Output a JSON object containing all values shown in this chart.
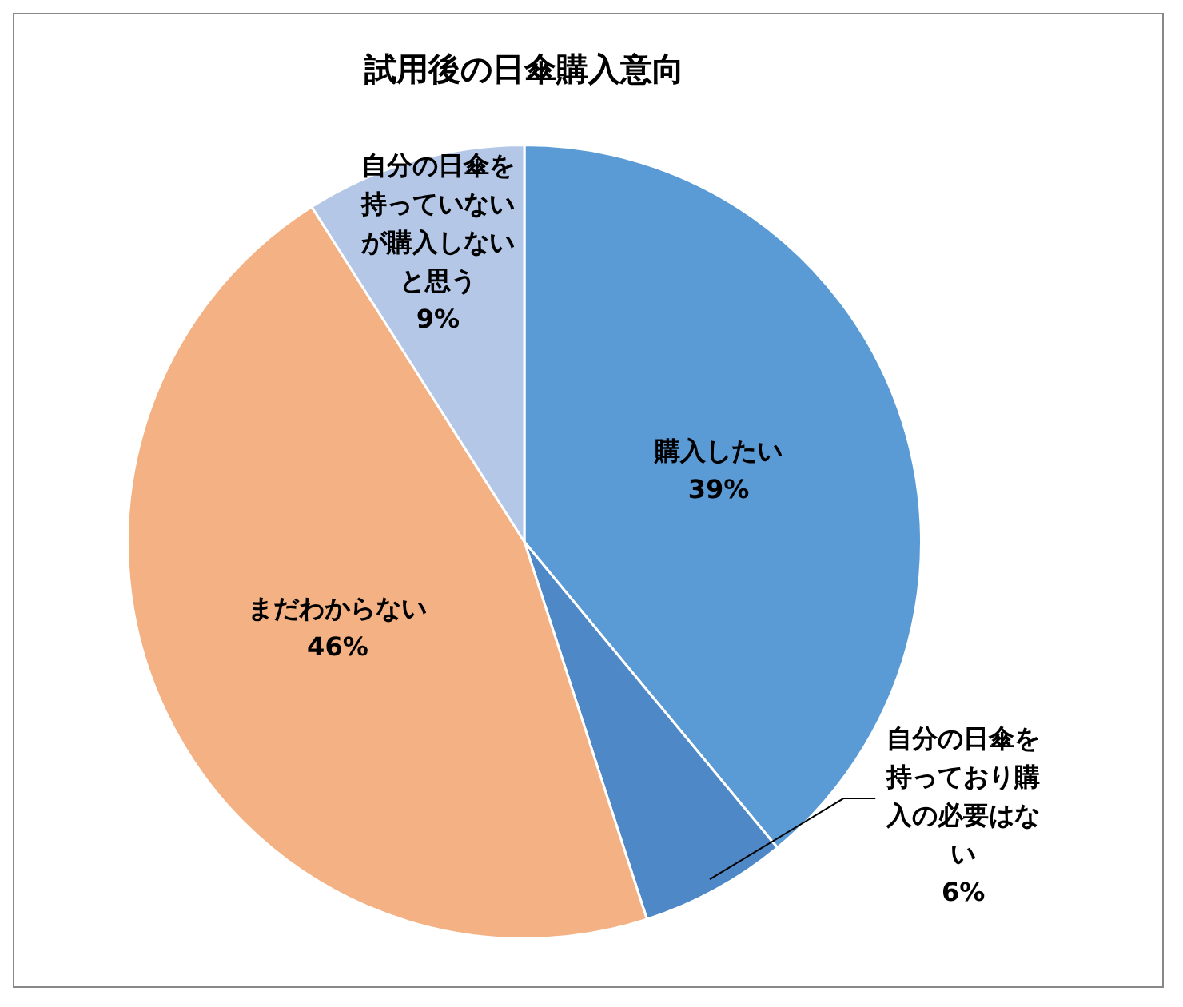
{
  "chart_data": {
    "type": "pie",
    "title": "試用後の日傘購入意向",
    "categories": [
      "購入したい",
      "自分の日傘を持っており購入の必要はない",
      "まだわからない",
      "自分の日傘を持っていないが購入しないと思う"
    ],
    "values": [
      39,
      6,
      46,
      9
    ],
    "colors": [
      "#5b9bd5",
      "#4f88c6",
      "#f4b183",
      "#b4c7e7"
    ],
    "value_labels": [
      "39%",
      "6%",
      "46%",
      "9%"
    ],
    "legend": false
  }
}
